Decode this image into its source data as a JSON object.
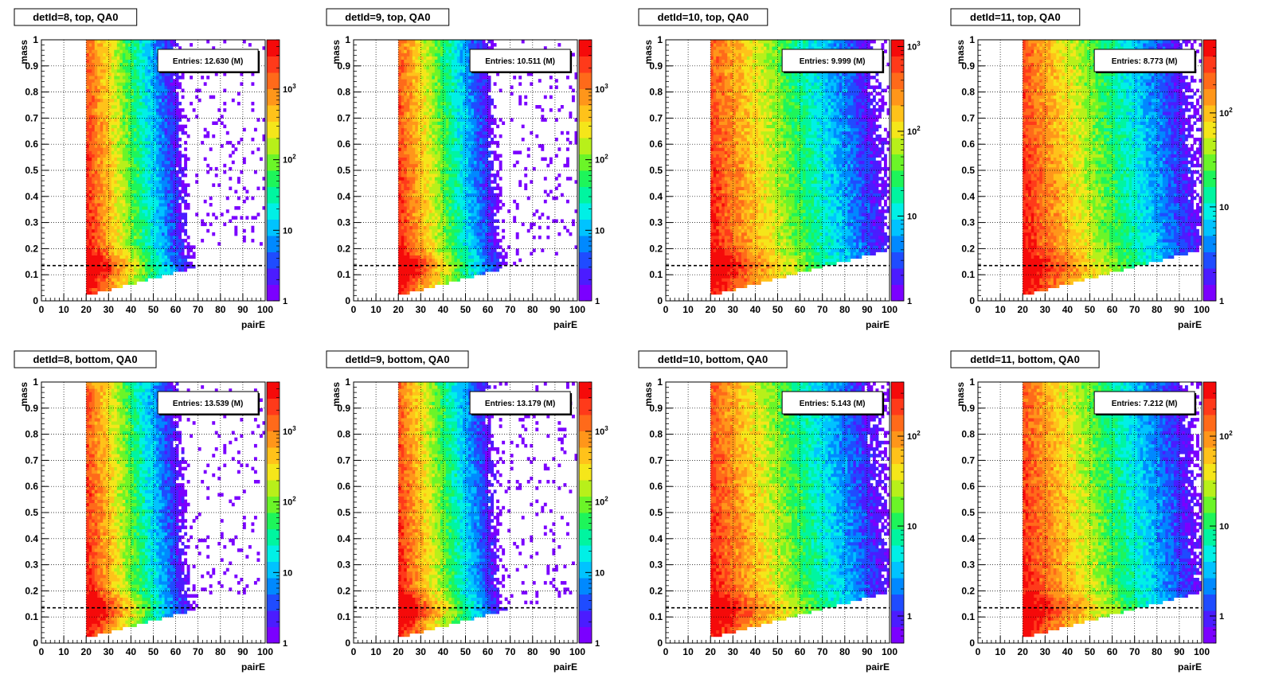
{
  "chart_data": [
    {
      "type": "heatmap",
      "title": "detId=8, top, QA0",
      "xlabel": "pairE",
      "ylabel": "mass",
      "xlim": [
        0,
        100
      ],
      "ylim": [
        0,
        1
      ],
      "x_ticks": [
        0,
        10,
        20,
        30,
        40,
        50,
        60,
        70,
        80,
        90,
        100
      ],
      "y_ticks": [
        0,
        0.1,
        0.2,
        0.3,
        0.4,
        0.5,
        0.6,
        0.7,
        0.8,
        0.9,
        1
      ],
      "z_scale": "log",
      "z_ticks": [
        {
          "value": 1,
          "label": "1"
        },
        {
          "value": 10,
          "label": "10"
        },
        {
          "value": 100,
          "label": "10",
          "exp": "2"
        },
        {
          "value": 1000,
          "label": "10",
          "exp": "3"
        }
      ],
      "z_range": [
        1,
        5000
      ],
      "entries": "Entries: 12.630 (M)",
      "reference_line_y": 0.135,
      "grid": true
    },
    {
      "type": "heatmap",
      "title": "detId=9, top, QA0",
      "xlabel": "pairE",
      "ylabel": "mass",
      "xlim": [
        0,
        100
      ],
      "ylim": [
        0,
        1
      ],
      "x_ticks": [
        0,
        10,
        20,
        30,
        40,
        50,
        60,
        70,
        80,
        90,
        100
      ],
      "y_ticks": [
        0,
        0.1,
        0.2,
        0.3,
        0.4,
        0.5,
        0.6,
        0.7,
        0.8,
        0.9,
        1
      ],
      "z_scale": "log",
      "z_ticks": [
        {
          "value": 1,
          "label": "1"
        },
        {
          "value": 10,
          "label": "10"
        },
        {
          "value": 100,
          "label": "10",
          "exp": "2"
        },
        {
          "value": 1000,
          "label": "10",
          "exp": "3"
        }
      ],
      "z_range": [
        1,
        5000
      ],
      "entries": "Entries: 10.511 (M)",
      "reference_line_y": 0.135,
      "grid": true
    },
    {
      "type": "heatmap",
      "title": "detId=10, top, QA0",
      "xlabel": "pairE",
      "ylabel": "mass",
      "xlim": [
        0,
        100
      ],
      "ylim": [
        0,
        1
      ],
      "x_ticks": [
        0,
        10,
        20,
        30,
        40,
        50,
        60,
        70,
        80,
        90,
        100
      ],
      "y_ticks": [
        0,
        0.1,
        0.2,
        0.3,
        0.4,
        0.5,
        0.6,
        0.7,
        0.8,
        0.9,
        1
      ],
      "z_scale": "log",
      "z_ticks": [
        {
          "value": 1,
          "label": "1"
        },
        {
          "value": 10,
          "label": "10"
        },
        {
          "value": 100,
          "label": "10",
          "exp": "2"
        },
        {
          "value": 1000,
          "label": "10",
          "exp": "3"
        }
      ],
      "z_range": [
        1,
        1200
      ],
      "entries": "Entries: 9.999 (M)",
      "reference_line_y": 0.135,
      "grid": true
    },
    {
      "type": "heatmap",
      "title": "detId=11, top, QA0",
      "xlabel": "pairE",
      "ylabel": "mass",
      "xlim": [
        0,
        100
      ],
      "ylim": [
        0,
        1
      ],
      "x_ticks": [
        0,
        10,
        20,
        30,
        40,
        50,
        60,
        70,
        80,
        90,
        100
      ],
      "y_ticks": [
        0,
        0.1,
        0.2,
        0.3,
        0.4,
        0.5,
        0.6,
        0.7,
        0.8,
        0.9,
        1
      ],
      "z_scale": "log",
      "z_ticks": [
        {
          "value": 1,
          "label": "1"
        },
        {
          "value": 10,
          "label": "10"
        },
        {
          "value": 100,
          "label": "10",
          "exp": "2"
        }
      ],
      "z_range": [
        1,
        600
      ],
      "entries": "Entries: 8.773 (M)",
      "reference_line_y": 0.135,
      "grid": true
    },
    {
      "type": "heatmap",
      "title": "detId=8, bottom, QA0",
      "xlabel": "pairE",
      "ylabel": "mass",
      "xlim": [
        0,
        100
      ],
      "ylim": [
        0,
        1
      ],
      "x_ticks": [
        0,
        10,
        20,
        30,
        40,
        50,
        60,
        70,
        80,
        90,
        100
      ],
      "y_ticks": [
        0,
        0.1,
        0.2,
        0.3,
        0.4,
        0.5,
        0.6,
        0.7,
        0.8,
        0.9,
        1
      ],
      "z_scale": "log",
      "z_ticks": [
        {
          "value": 1,
          "label": "1"
        },
        {
          "value": 10,
          "label": "10"
        },
        {
          "value": 100,
          "label": "10",
          "exp": "2"
        },
        {
          "value": 1000,
          "label": "10",
          "exp": "3"
        }
      ],
      "z_range": [
        1,
        5000
      ],
      "entries": "Entries: 13.539 (M)",
      "reference_line_y": 0.135,
      "grid": true
    },
    {
      "type": "heatmap",
      "title": "detId=9, bottom, QA0",
      "xlabel": "pairE",
      "ylabel": "mass",
      "xlim": [
        0,
        100
      ],
      "ylim": [
        0,
        1
      ],
      "x_ticks": [
        0,
        10,
        20,
        30,
        40,
        50,
        60,
        70,
        80,
        90,
        100
      ],
      "y_ticks": [
        0,
        0.1,
        0.2,
        0.3,
        0.4,
        0.5,
        0.6,
        0.7,
        0.8,
        0.9,
        1
      ],
      "z_scale": "log",
      "z_ticks": [
        {
          "value": 1,
          "label": "1"
        },
        {
          "value": 10,
          "label": "10"
        },
        {
          "value": 100,
          "label": "10",
          "exp": "2"
        },
        {
          "value": 1000,
          "label": "10",
          "exp": "3"
        }
      ],
      "z_range": [
        1,
        5000
      ],
      "entries": "Entries: 13.179 (M)",
      "reference_line_y": 0.135,
      "grid": true
    },
    {
      "type": "heatmap",
      "title": "detId=10, bottom, QA0",
      "xlabel": "pairE",
      "ylabel": "mass",
      "xlim": [
        0,
        100
      ],
      "ylim": [
        0,
        1
      ],
      "x_ticks": [
        0,
        10,
        20,
        30,
        40,
        50,
        60,
        70,
        80,
        90,
        100
      ],
      "y_ticks": [
        0,
        0.1,
        0.2,
        0.3,
        0.4,
        0.5,
        0.6,
        0.7,
        0.8,
        0.9,
        1
      ],
      "z_scale": "log",
      "z_ticks": [
        {
          "value": 1,
          "label": "1"
        },
        {
          "value": 10,
          "label": "10"
        },
        {
          "value": 100,
          "label": "10",
          "exp": "2"
        }
      ],
      "z_range": [
        0.5,
        400
      ],
      "entries": "Entries: 5.143 (M)",
      "reference_line_y": 0.135,
      "grid": true
    },
    {
      "type": "heatmap",
      "title": "detId=11, bottom, QA0",
      "xlabel": "pairE",
      "ylabel": "mass",
      "xlim": [
        0,
        100
      ],
      "ylim": [
        0,
        1
      ],
      "x_ticks": [
        0,
        10,
        20,
        30,
        40,
        50,
        60,
        70,
        80,
        90,
        100
      ],
      "y_ticks": [
        0,
        0.1,
        0.2,
        0.3,
        0.4,
        0.5,
        0.6,
        0.7,
        0.8,
        0.9,
        1
      ],
      "z_scale": "log",
      "z_ticks": [
        {
          "value": 1,
          "label": "1"
        },
        {
          "value": 10,
          "label": "10"
        },
        {
          "value": 100,
          "label": "10",
          "exp": "2"
        }
      ],
      "z_range": [
        0.5,
        400
      ],
      "entries": "Entries: 7.212 (M)",
      "reference_line_y": 0.135,
      "grid": true
    }
  ],
  "colors": {
    "palette": [
      "#7b00ff",
      "#4b1cff",
      "#1f4cff",
      "#0089ff",
      "#00c3ff",
      "#00f0e6",
      "#00f5a0",
      "#1ef55a",
      "#6bf528",
      "#b8f01a",
      "#f5e61a",
      "#ffc21a",
      "#ff961a",
      "#ff6a1a",
      "#ff3a1a",
      "#f50a0a"
    ],
    "reference_line": "#000000",
    "frame": "#000000"
  }
}
